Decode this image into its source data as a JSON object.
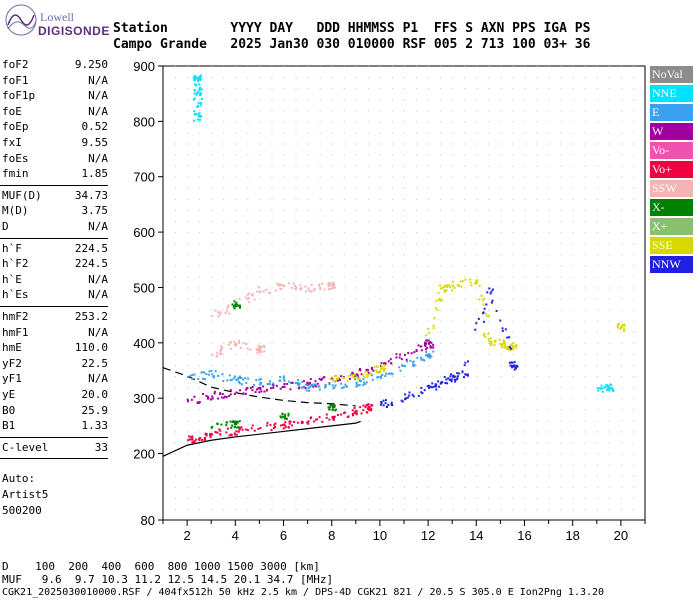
{
  "logo": {
    "line1": "Lowell",
    "line2": "DIGISONDE"
  },
  "header": {
    "row1": "Station        YYYY DAY   DDD HHMMSS P1  FFS S AXN PPS IGA PS",
    "row2": "Campo Grande   2025 Jan30 030 010000 RSF 005 2 713 100 03+ 36"
  },
  "params": {
    "g1": [
      [
        "foF2",
        "9.250"
      ],
      [
        "foF1",
        "N/A"
      ],
      [
        "foF1p",
        "N/A"
      ],
      [
        "foE",
        "N/A"
      ],
      [
        "foEp",
        "0.52"
      ],
      [
        "fxI",
        "9.55"
      ],
      [
        "foEs",
        "N/A"
      ],
      [
        "fmin",
        "1.85"
      ]
    ],
    "g2": [
      [
        "MUF(D)",
        "34.73"
      ],
      [
        "M(D)",
        "3.75"
      ],
      [
        "D",
        "N/A"
      ]
    ],
    "g3": [
      [
        "h`F",
        "224.5"
      ],
      [
        "h`F2",
        "224.5"
      ],
      [
        "h`E",
        "N/A"
      ],
      [
        "h`Es",
        "N/A"
      ]
    ],
    "g4": [
      [
        "hmF2",
        "253.2"
      ],
      [
        "hmF1",
        "N/A"
      ],
      [
        "hmE",
        "110.0"
      ],
      [
        "yF2",
        "22.5"
      ],
      [
        "yF1",
        "N/A"
      ],
      [
        "yE",
        "20.0"
      ],
      [
        "B0",
        "25.9"
      ],
      [
        "B1",
        "1.33"
      ]
    ],
    "g5": [
      [
        "C-level",
        "33"
      ]
    ],
    "auto": [
      "Auto:",
      "Artist5",
      "500200"
    ]
  },
  "legend": [
    {
      "label": "NoVal",
      "color": "#8c8c8c"
    },
    {
      "label": "NNE",
      "color": "#00e0ff"
    },
    {
      "label": "E",
      "color": "#3aa0f0"
    },
    {
      "label": "W",
      "color": "#a0009f"
    },
    {
      "label": "Vo-",
      "color": "#f050b0"
    },
    {
      "label": "Vo+",
      "color": "#f00040"
    },
    {
      "label": "SSW",
      "color": "#f4b4b4"
    },
    {
      "label": "X-",
      "color": "#008000"
    },
    {
      "label": "X+",
      "color": "#88c070"
    },
    {
      "label": "SSE",
      "color": "#d8d800"
    },
    {
      "label": "NNW",
      "color": "#2020e0"
    }
  ],
  "footer": {
    "l1": "D    100  200  400  600  800 1000 1500 3000 [km]",
    "l2": "MUF   9.6  9.7 10.3 11.2 12.5 14.5 20.1 34.7 [MHz]",
    "l3": "CGK21_2025030010000.RSF / 404fx512h 50 kHz 2.5 km / DPS-4D CGK21 821 / 20.5 S 305.0 E Ion2Png 1.3.20"
  },
  "chart_data": {
    "type": "scatter",
    "xlim": [
      1,
      21
    ],
    "ylim": [
      80,
      900
    ],
    "x_ticks": [
      2,
      4,
      6,
      8,
      10,
      12,
      14,
      16,
      18,
      20
    ],
    "y_ticks": [
      80,
      200,
      300,
      400,
      500,
      600,
      700,
      800,
      900
    ],
    "grid": true,
    "legend_position": "right",
    "series": [
      {
        "name": "Vo+",
        "color": "#f00040",
        "points": [
          [
            2,
            226
          ],
          [
            2.5,
            230
          ],
          [
            3,
            236
          ],
          [
            4,
            242
          ],
          [
            5,
            248
          ],
          [
            6,
            254
          ],
          [
            7,
            260
          ],
          [
            8,
            268
          ],
          [
            9,
            278
          ],
          [
            9.5,
            286
          ]
        ]
      },
      {
        "name": "W",
        "color": "#a0009f",
        "points": [
          [
            2,
            296
          ],
          [
            3,
            305
          ],
          [
            4,
            312
          ],
          [
            5,
            318
          ],
          [
            6,
            322
          ],
          [
            7,
            328
          ],
          [
            8,
            336
          ],
          [
            9,
            345
          ],
          [
            10,
            360
          ],
          [
            11,
            380
          ],
          [
            12,
            400
          ]
        ]
      },
      {
        "name": "E",
        "color": "#3aa0f0",
        "points": [
          [
            2,
            340
          ],
          [
            3,
            345
          ],
          [
            4,
            335
          ],
          [
            5,
            330
          ],
          [
            6,
            335
          ],
          [
            7,
            320
          ],
          [
            8,
            325
          ],
          [
            9,
            330
          ],
          [
            10,
            340
          ],
          [
            11,
            360
          ],
          [
            12,
            380
          ]
        ]
      },
      {
        "name": "SSE",
        "color": "#d8d800",
        "points": [
          [
            8,
            335
          ],
          [
            9,
            340
          ],
          [
            10,
            355
          ],
          [
            12,
            420
          ],
          [
            12.5,
            500
          ],
          [
            13,
            505
          ],
          [
            14,
            515
          ],
          [
            14.5,
            405
          ],
          [
            15,
            400
          ],
          [
            15.5,
            395
          ],
          [
            20,
            430
          ]
        ]
      },
      {
        "name": "NNW",
        "color": "#2020e0",
        "points": [
          [
            10,
            290
          ],
          [
            11,
            300
          ],
          [
            12,
            320
          ],
          [
            12.5,
            330
          ],
          [
            13,
            340
          ],
          [
            13.5,
            345
          ],
          [
            14.5,
            500
          ],
          [
            15.5,
            360
          ]
        ]
      },
      {
        "name": "SSW",
        "color": "#f4b4b4",
        "points": [
          [
            3,
            450
          ],
          [
            4,
            470
          ],
          [
            5,
            495
          ],
          [
            6,
            505
          ],
          [
            7,
            500
          ],
          [
            8,
            505
          ],
          [
            3,
            380
          ],
          [
            4,
            400
          ],
          [
            5,
            390
          ]
        ]
      },
      {
        "name": "NNE",
        "color": "#00e0ff",
        "points": [
          [
            2.4,
            805
          ],
          [
            2.4,
            830
          ],
          [
            2.4,
            855
          ],
          [
            2.4,
            880
          ],
          [
            19,
            320
          ],
          [
            19.5,
            320
          ]
        ]
      },
      {
        "name": "X-",
        "color": "#008000",
        "points": [
          [
            3,
            250
          ],
          [
            4,
            255
          ],
          [
            6,
            268
          ],
          [
            8,
            286
          ],
          [
            4,
            470
          ]
        ]
      }
    ],
    "profile": {
      "color": "#000",
      "points": [
        [
          1,
          195
        ],
        [
          2,
          215
        ],
        [
          3,
          224
        ],
        [
          4,
          230
        ],
        [
          5,
          235
        ],
        [
          6,
          240
        ],
        [
          7,
          245
        ],
        [
          8,
          250
        ],
        [
          9,
          255
        ],
        [
          9.2,
          258
        ]
      ]
    },
    "dashed": {
      "color": "#000",
      "points": [
        [
          1,
          355
        ],
        [
          2,
          340
        ],
        [
          3,
          320
        ],
        [
          4,
          310
        ],
        [
          5,
          302
        ],
        [
          6,
          296
        ],
        [
          7,
          292
        ],
        [
          8,
          290
        ],
        [
          9,
          286
        ]
      ]
    }
  }
}
